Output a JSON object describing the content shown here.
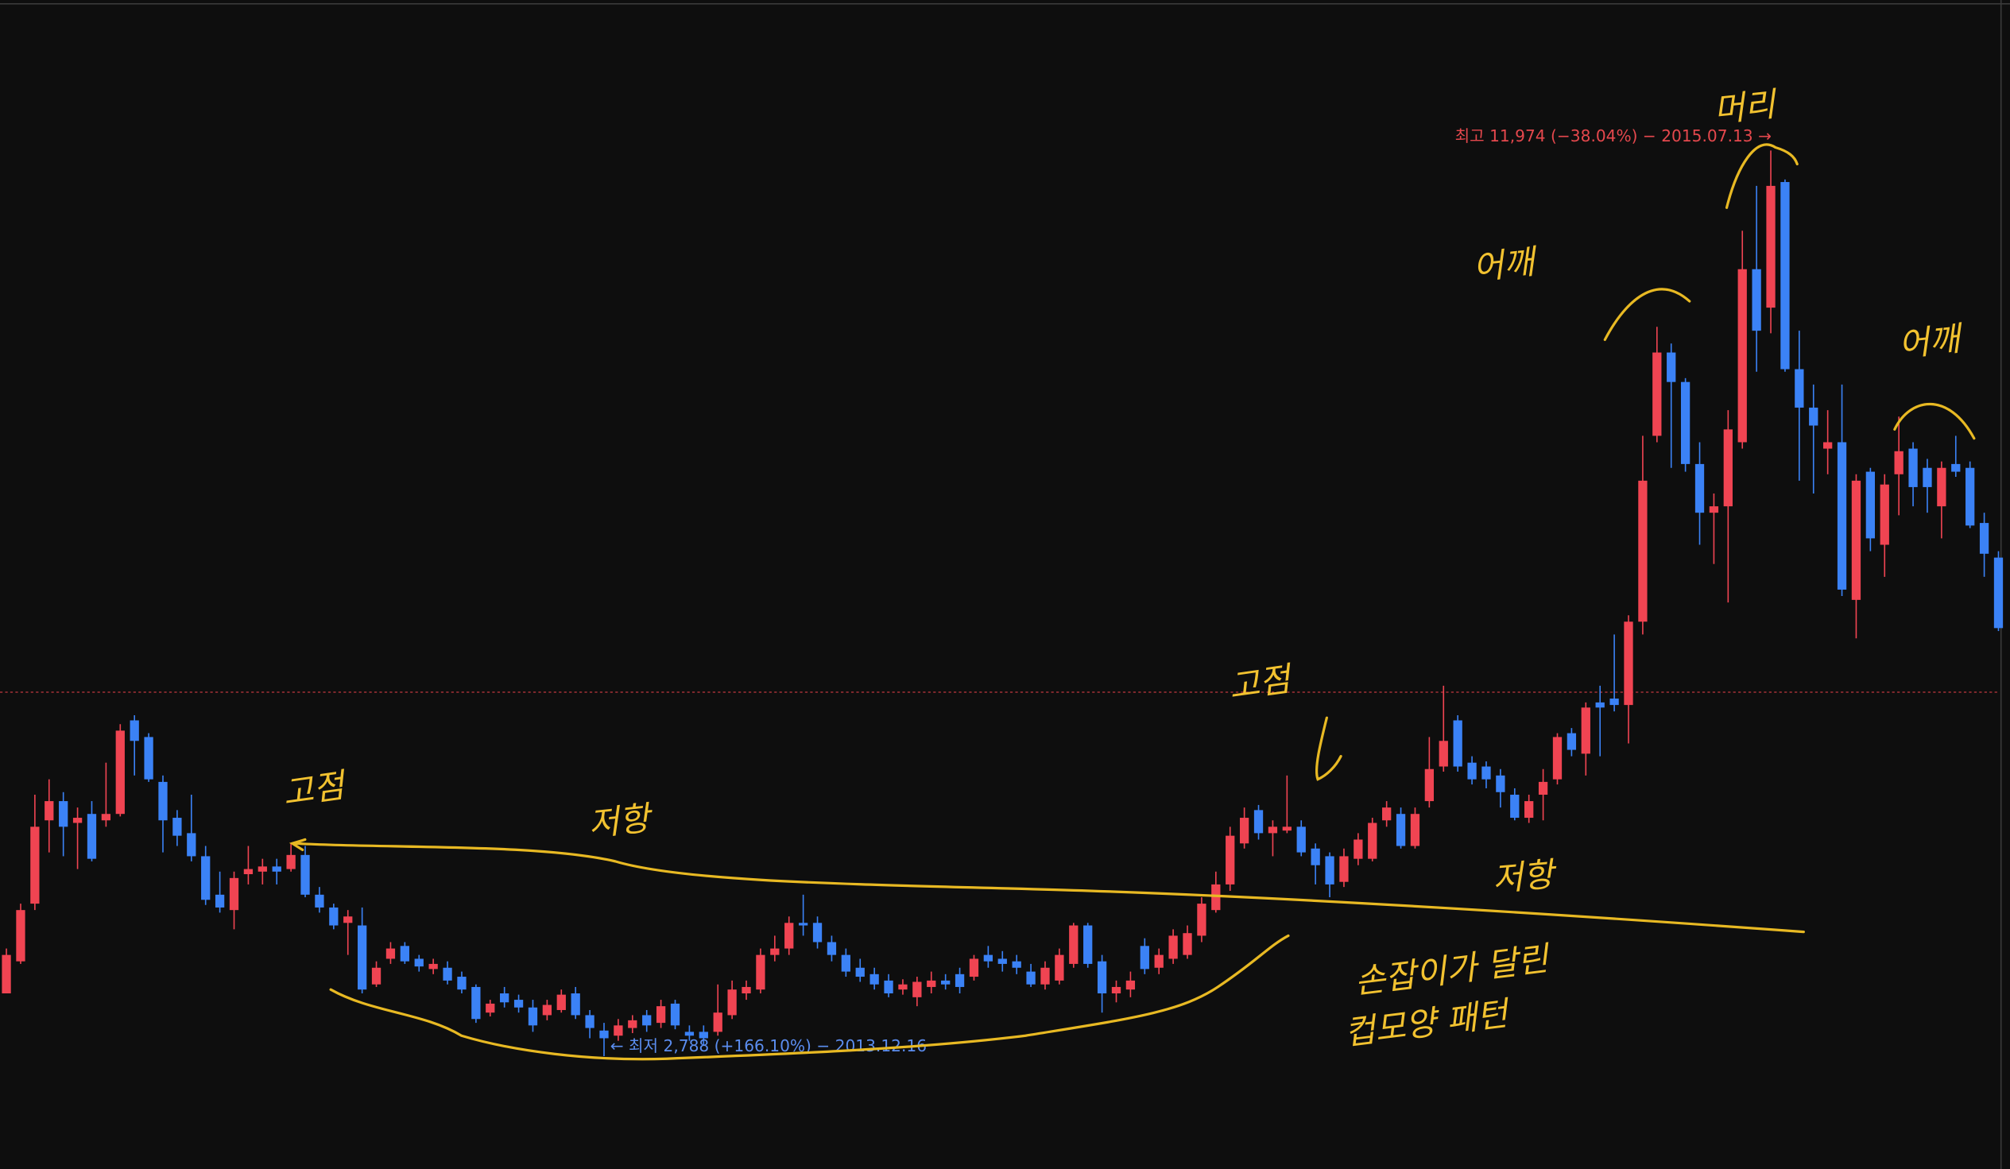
{
  "chart_data": {
    "type": "candlestick",
    "up_color": "#f04452",
    "down_color": "#3b82f6",
    "ylim": [
      1644,
      13500
    ],
    "price_line": 6480,
    "high_label": "최고 11,974 (−38.04%) − 2015.07.13 →",
    "low_label": "← 최저 2,788 (+166.10%) − 2013.12.16",
    "annotations": [
      "고점",
      "저항",
      "고점",
      "저항",
      "어깨",
      "머리",
      "어깨",
      "손잡이가 달린",
      "컵모양 패턴"
    ],
    "ohlc": [
      [
        3425,
        3880,
        3425,
        3815
      ],
      [
        3750,
        4335,
        3724,
        4270
      ],
      [
        4335,
        5440,
        4270,
        5115
      ],
      [
        5180,
        5596,
        4855,
        5375
      ],
      [
        5375,
        5466,
        4816,
        5115
      ],
      [
        5154,
        5310,
        4686,
        5206
      ],
      [
        5245,
        5375,
        4764,
        4790
      ],
      [
        5180,
        5765,
        5115,
        5245
      ],
      [
        5245,
        6155,
        5219,
        6090
      ],
      [
        6194,
        6246,
        5635,
        5986
      ],
      [
        6025,
        6064,
        5570,
        5596
      ],
      [
        5570,
        5635,
        4855,
        5180
      ],
      [
        5206,
        5284,
        4920,
        5024
      ],
      [
        5050,
        5440,
        4764,
        4816
      ],
      [
        4816,
        4920,
        4322,
        4374
      ],
      [
        4426,
        4660,
        4244,
        4296
      ],
      [
        4270,
        4660,
        4075,
        4595
      ],
      [
        4634,
        4920,
        4530,
        4686
      ],
      [
        4660,
        4790,
        4530,
        4712
      ],
      [
        4712,
        4790,
        4530,
        4660
      ],
      [
        4686,
        4946,
        4660,
        4829
      ],
      [
        4829,
        4920,
        4400,
        4426
      ],
      [
        4426,
        4504,
        4244,
        4296
      ],
      [
        4296,
        4335,
        4075,
        4114
      ],
      [
        4140,
        4270,
        3815,
        4205
      ],
      [
        4114,
        4296,
        3425,
        3464
      ],
      [
        3516,
        3750,
        3490,
        3685
      ],
      [
        3776,
        3945,
        3724,
        3880
      ],
      [
        3906,
        3945,
        3724,
        3750
      ],
      [
        3776,
        3815,
        3646,
        3698
      ],
      [
        3672,
        3776,
        3620,
        3724
      ],
      [
        3685,
        3750,
        3516,
        3555
      ],
      [
        3594,
        3646,
        3425,
        3464
      ],
      [
        3490,
        3516,
        3126,
        3165
      ],
      [
        3230,
        3360,
        3191,
        3321
      ],
      [
        3425,
        3490,
        3282,
        3334
      ],
      [
        3360,
        3412,
        3230,
        3282
      ],
      [
        3282,
        3360,
        3035,
        3100
      ],
      [
        3204,
        3360,
        3152,
        3308
      ],
      [
        3256,
        3464,
        3230,
        3412
      ],
      [
        3425,
        3490,
        3165,
        3204
      ],
      [
        3204,
        3256,
        2970,
        3074
      ],
      [
        3048,
        3126,
        2788,
        2970
      ],
      [
        2996,
        3165,
        2944,
        3100
      ],
      [
        3074,
        3204,
        3022,
        3152
      ],
      [
        3204,
        3256,
        3035,
        3100
      ],
      [
        3126,
        3360,
        3074,
        3295
      ],
      [
        3321,
        3360,
        3061,
        3100
      ],
      [
        3035,
        3100,
        2944,
        2996
      ],
      [
        3035,
        3100,
        2905,
        2970
      ],
      [
        3035,
        3516,
        2996,
        3230
      ],
      [
        3204,
        3555,
        3165,
        3464
      ],
      [
        3425,
        3555,
        3360,
        3490
      ],
      [
        3464,
        3880,
        3425,
        3815
      ],
      [
        3815,
        4010,
        3750,
        3880
      ],
      [
        3880,
        4205,
        3815,
        4140
      ],
      [
        4140,
        4426,
        4010,
        4114
      ],
      [
        4140,
        4205,
        3880,
        3945
      ],
      [
        3945,
        4010,
        3750,
        3815
      ],
      [
        3815,
        3880,
        3594,
        3646
      ],
      [
        3685,
        3776,
        3542,
        3594
      ],
      [
        3620,
        3685,
        3464,
        3516
      ],
      [
        3555,
        3620,
        3386,
        3425
      ],
      [
        3464,
        3568,
        3412,
        3516
      ],
      [
        3386,
        3594,
        3295,
        3542
      ],
      [
        3490,
        3646,
        3425,
        3555
      ],
      [
        3555,
        3620,
        3464,
        3516
      ],
      [
        3620,
        3685,
        3425,
        3490
      ],
      [
        3594,
        3815,
        3555,
        3776
      ],
      [
        3815,
        3906,
        3685,
        3750
      ],
      [
        3776,
        3854,
        3646,
        3724
      ],
      [
        3750,
        3815,
        3620,
        3685
      ],
      [
        3646,
        3724,
        3490,
        3516
      ],
      [
        3516,
        3750,
        3464,
        3685
      ],
      [
        3555,
        3880,
        3516,
        3815
      ],
      [
        3724,
        4140,
        3685,
        4114
      ],
      [
        4114,
        4140,
        3685,
        3724
      ],
      [
        3750,
        3815,
        3230,
        3425
      ],
      [
        3425,
        3555,
        3334,
        3490
      ],
      [
        3464,
        3646,
        3386,
        3555
      ],
      [
        3906,
        3984,
        3620,
        3672
      ],
      [
        3685,
        3880,
        3620,
        3815
      ],
      [
        3776,
        4075,
        3724,
        4010
      ],
      [
        3815,
        4114,
        3776,
        4036
      ],
      [
        4010,
        4400,
        3945,
        4335
      ],
      [
        4270,
        4660,
        4244,
        4530
      ],
      [
        4530,
        5115,
        4465,
        5024
      ],
      [
        4946,
        5310,
        4894,
        5206
      ],
      [
        5284,
        5336,
        4985,
        5050
      ],
      [
        5050,
        5180,
        4816,
        5115
      ],
      [
        5076,
        5635,
        5050,
        5115
      ],
      [
        5115,
        5180,
        4816,
        4855
      ],
      [
        4894,
        4946,
        4530,
        4725
      ],
      [
        4816,
        4855,
        4400,
        4530
      ],
      [
        4556,
        4894,
        4504,
        4816
      ],
      [
        4790,
        5050,
        4725,
        4985
      ],
      [
        4790,
        5206,
        4764,
        5154
      ],
      [
        5180,
        5375,
        5115,
        5310
      ],
      [
        5245,
        5310,
        4894,
        4920
      ],
      [
        4920,
        5310,
        4894,
        5245
      ],
      [
        5375,
        6025,
        5310,
        5700
      ],
      [
        5726,
        6545,
        5674,
        5986
      ],
      [
        6194,
        6246,
        5674,
        5726
      ],
      [
        5765,
        5830,
        5544,
        5596
      ],
      [
        5726,
        5778,
        5505,
        5596
      ],
      [
        5635,
        5700,
        5310,
        5466
      ],
      [
        5440,
        5505,
        5180,
        5206
      ],
      [
        5206,
        5440,
        5154,
        5375
      ],
      [
        5440,
        5700,
        5180,
        5570
      ],
      [
        5596,
        6064,
        5544,
        6025
      ],
      [
        6064,
        6116,
        5830,
        5895
      ],
      [
        5856,
        6376,
        5635,
        6324
      ],
      [
        6376,
        6545,
        5830,
        6324
      ],
      [
        6415,
        7065,
        6285,
        6350
      ],
      [
        6350,
        7260,
        5960,
        7195
      ],
      [
        7195,
        9080,
        7065,
        8625
      ],
      [
        9080,
        10185,
        9015,
        9925
      ],
      [
        9925,
        10016,
        8755,
        9626
      ],
      [
        9626,
        9665,
        8716,
        8794
      ],
      [
        8794,
        9015,
        7975,
        8300
      ],
      [
        8300,
        8495,
        7780,
        8365
      ],
      [
        8365,
        9340,
        7390,
        9145
      ],
      [
        9015,
        11160,
        8950,
        10770
      ],
      [
        10770,
        11615,
        9730,
        10146
      ],
      [
        10380,
        11974,
        10120,
        11615
      ],
      [
        11654,
        11680,
        9730,
        9756
      ],
      [
        9756,
        10146,
        8625,
        9366
      ],
      [
        9366,
        9600,
        8495,
        9184
      ],
      [
        8950,
        9340,
        8690,
        9015
      ],
      [
        9015,
        9600,
        7455,
        7520
      ],
      [
        7416,
        8690,
        7026,
        8625
      ],
      [
        8716,
        8755,
        7910,
        8040
      ],
      [
        7975,
        8690,
        7650,
        8586
      ],
      [
        8690,
        9275,
        8274,
        8924
      ],
      [
        8950,
        9015,
        8365,
        8560
      ],
      [
        8755,
        8846,
        8300,
        8560
      ],
      [
        8365,
        8820,
        8040,
        8755
      ],
      [
        8794,
        9080,
        8664,
        8716
      ],
      [
        8755,
        8820,
        8144,
        8170
      ],
      [
        8196,
        8300,
        7650,
        7884
      ],
      [
        7845,
        7910,
        7100,
        7130
      ]
    ]
  }
}
